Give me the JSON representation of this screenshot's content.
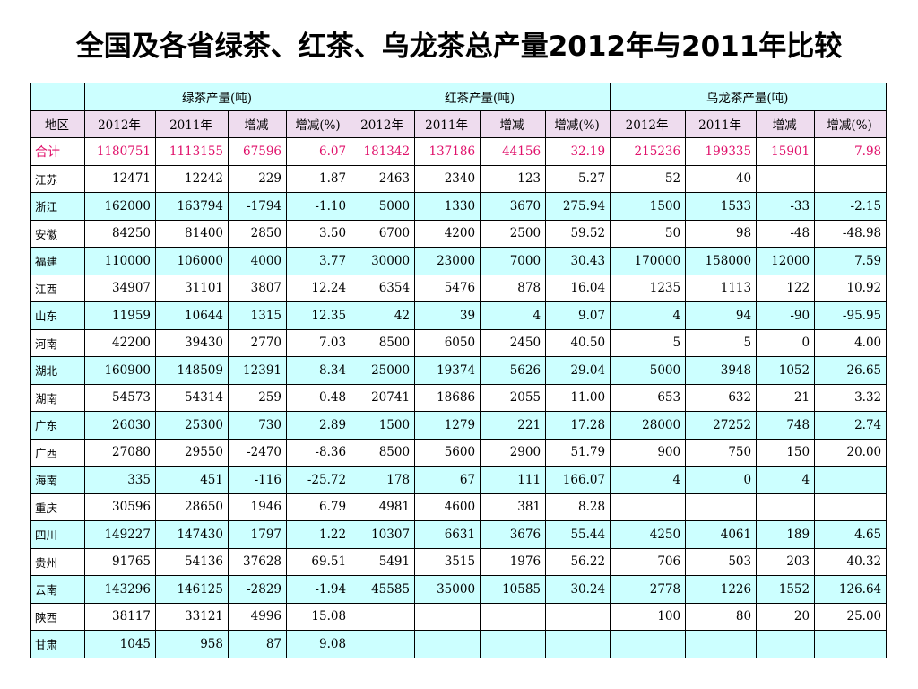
{
  "title": "全国及各省绿茶、红茶、乌龙茶总产量2012年与2011年比较",
  "colors": {
    "header_bg": "#ccffff",
    "subheader_bg": "#eedcee",
    "total_text": "#e0106a",
    "alt_row_bg": "#ccffff"
  },
  "group_headers": [
    "",
    "绿茶产量(吨)",
    "红茶产量(吨)",
    "乌龙茶产量(吨)"
  ],
  "columns": [
    "地区",
    "2012年",
    "2011年",
    "增减",
    "增减(%)",
    "2012年",
    "2011年",
    "增减",
    "增减(%)",
    "2012年",
    "2011年",
    "增减",
    "增减(%)"
  ],
  "rows": [
    [
      "合计",
      "1180751",
      "1113155",
      "67596",
      "6.07",
      "181342",
      "137186",
      "44156",
      "32.19",
      "215236",
      "199335",
      "15901",
      "7.98"
    ],
    [
      "江苏",
      "12471",
      "12242",
      "229",
      "1.87",
      "2463",
      "2340",
      "123",
      "5.27",
      "52",
      "40",
      "",
      ""
    ],
    [
      "浙江",
      "162000",
      "163794",
      "-1794",
      "-1.10",
      "5000",
      "1330",
      "3670",
      "275.94",
      "1500",
      "1533",
      "-33",
      "-2.15"
    ],
    [
      "安徽",
      "84250",
      "81400",
      "2850",
      "3.50",
      "6700",
      "4200",
      "2500",
      "59.52",
      "50",
      "98",
      "-48",
      "-48.98"
    ],
    [
      "福建",
      "110000",
      "106000",
      "4000",
      "3.77",
      "30000",
      "23000",
      "7000",
      "30.43",
      "170000",
      "158000",
      "12000",
      "7.59"
    ],
    [
      "江西",
      "34907",
      "31101",
      "3807",
      "12.24",
      "6354",
      "5476",
      "878",
      "16.04",
      "1235",
      "1113",
      "122",
      "10.92"
    ],
    [
      "山东",
      "11959",
      "10644",
      "1315",
      "12.35",
      "42",
      "39",
      "4",
      "9.07",
      "4",
      "94",
      "-90",
      "-95.95"
    ],
    [
      "河南",
      "42200",
      "39430",
      "2770",
      "7.03",
      "8500",
      "6050",
      "2450",
      "40.50",
      "5",
      "5",
      "0",
      "4.00"
    ],
    [
      "湖北",
      "160900",
      "148509",
      "12391",
      "8.34",
      "25000",
      "19374",
      "5626",
      "29.04",
      "5000",
      "3948",
      "1052",
      "26.65"
    ],
    [
      "湖南",
      "54573",
      "54314",
      "259",
      "0.48",
      "20741",
      "18686",
      "2055",
      "11.00",
      "653",
      "632",
      "21",
      "3.32"
    ],
    [
      "广东",
      "26030",
      "25300",
      "730",
      "2.89",
      "1500",
      "1279",
      "221",
      "17.28",
      "28000",
      "27252",
      "748",
      "2.74"
    ],
    [
      "广西",
      "27080",
      "29550",
      "-2470",
      "-8.36",
      "8500",
      "5600",
      "2900",
      "51.79",
      "900",
      "750",
      "150",
      "20.00"
    ],
    [
      "海南",
      "335",
      "451",
      "-116",
      "-25.72",
      "178",
      "67",
      "111",
      "166.07",
      "4",
      "0",
      "4",
      ""
    ],
    [
      "重庆",
      "30596",
      "28650",
      "1946",
      "6.79",
      "4981",
      "4600",
      "381",
      "8.28",
      "",
      "",
      "",
      ""
    ],
    [
      "四川",
      "149227",
      "147430",
      "1797",
      "1.22",
      "10307",
      "6631",
      "3676",
      "55.44",
      "4250",
      "4061",
      "189",
      "4.65"
    ],
    [
      "贵州",
      "91765",
      "54136",
      "37628",
      "69.51",
      "5491",
      "3515",
      "1976",
      "56.22",
      "706",
      "503",
      "203",
      "40.32"
    ],
    [
      "云南",
      "143296",
      "146125",
      "-2829",
      "-1.94",
      "45585",
      "35000",
      "10585",
      "30.24",
      "2778",
      "1226",
      "1552",
      "126.64"
    ],
    [
      "陕西",
      "38117",
      "33121",
      "4996",
      "15.08",
      "",
      "",
      "",
      "",
      "100",
      "80",
      "20",
      "25.00"
    ],
    [
      "甘肃",
      "1045",
      "958",
      "87",
      "9.08",
      "",
      "",
      "",
      "",
      "",
      "",
      "",
      ""
    ]
  ]
}
